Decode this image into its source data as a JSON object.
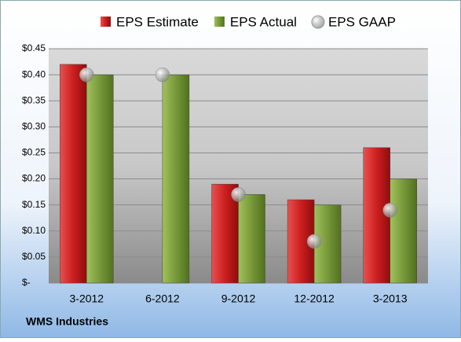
{
  "chart_data": {
    "type": "bar",
    "caption": "WMS Industries",
    "categories": [
      "3-2012",
      "6-2012",
      "9-2012",
      "12-2012",
      "3-2013"
    ],
    "series": [
      {
        "name": "EPS Estimate",
        "type": "bar",
        "color": "#cc1f1f",
        "values": [
          0.42,
          null,
          0.19,
          0.16,
          0.26
        ]
      },
      {
        "name": "EPS Actual",
        "type": "bar",
        "color": "#77983a",
        "values": [
          0.4,
          0.4,
          0.17,
          0.15,
          0.2
        ]
      },
      {
        "name": "EPS GAAP",
        "type": "scatter",
        "color": "#b0b0b0",
        "values": [
          0.4,
          0.4,
          0.17,
          0.08,
          0.14
        ]
      }
    ],
    "ylim": [
      0,
      0.45
    ],
    "yticks": [
      {
        "value": 0,
        "label": "$-"
      },
      {
        "value": 0.05,
        "label": "$0.05"
      },
      {
        "value": 0.1,
        "label": "$0.10"
      },
      {
        "value": 0.15,
        "label": "$0.15"
      },
      {
        "value": 0.2,
        "label": "$0.20"
      },
      {
        "value": 0.25,
        "label": "$0.25"
      },
      {
        "value": 0.3,
        "label": "$0.30"
      },
      {
        "value": 0.35,
        "label": "$0.35"
      },
      {
        "value": 0.4,
        "label": "$0.40"
      },
      {
        "value": 0.45,
        "label": "$0.45"
      }
    ],
    "grid": true,
    "legend": "top"
  }
}
